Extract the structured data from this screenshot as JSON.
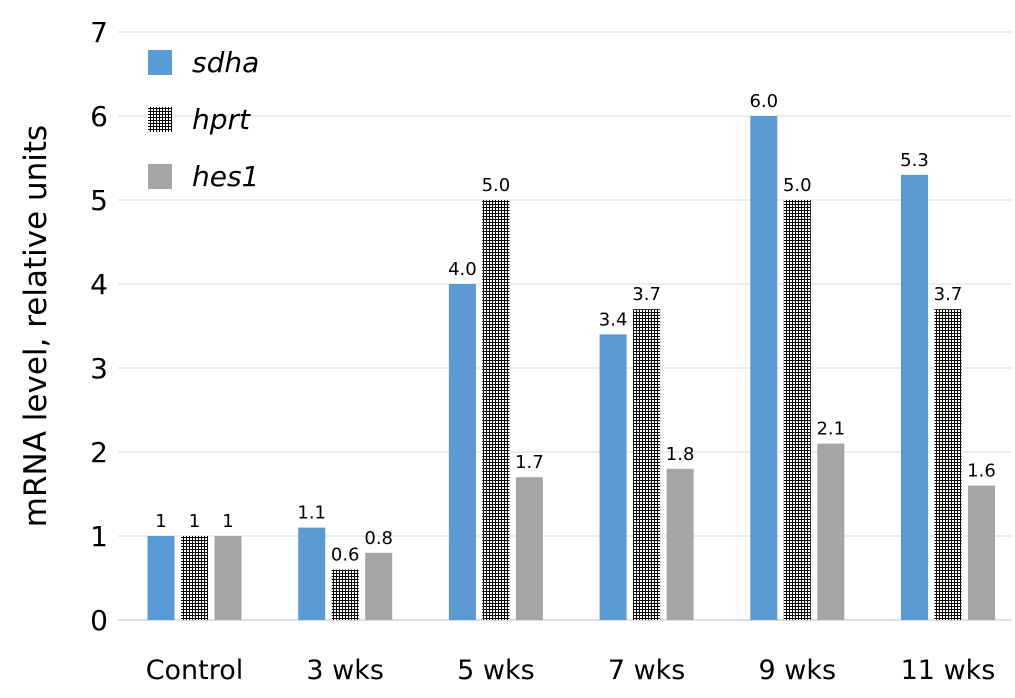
{
  "chart_data": {
    "type": "bar",
    "title": "",
    "xlabel": "",
    "ylabel": "mRNA level, relative units",
    "ylim": [
      0,
      7
    ],
    "yticks": [
      "0",
      "1",
      "2",
      "3",
      "4",
      "5",
      "6",
      "7"
    ],
    "grid": true,
    "legend_position": "top-left",
    "categories": [
      "Control",
      "3 wks",
      "5 wks",
      "7 wks",
      "9 wks",
      "11 wks"
    ],
    "series": [
      {
        "name": "sdha",
        "color": "#5b9bd5",
        "fill": "solid",
        "values": [
          1,
          1.1,
          4.0,
          3.4,
          6.0,
          5.3
        ],
        "labels": [
          "1",
          "1.1",
          "4.0",
          "3.4",
          "6.0",
          "5.3"
        ]
      },
      {
        "name": "hprt",
        "color": "#000000",
        "fill": "crosshatch",
        "values": [
          1,
          0.6,
          5.0,
          3.7,
          5.0,
          3.7
        ],
        "labels": [
          "1",
          "0.6",
          "5.0",
          "3.7",
          "5.0",
          "3.7"
        ]
      },
      {
        "name": "hes1",
        "color": "#a5a5a5",
        "fill": "solid",
        "values": [
          1,
          0.8,
          1.7,
          1.8,
          2.1,
          1.6
        ],
        "labels": [
          "1",
          "0.8",
          "1.7",
          "1.8",
          "2.1",
          "1.6"
        ]
      }
    ]
  }
}
